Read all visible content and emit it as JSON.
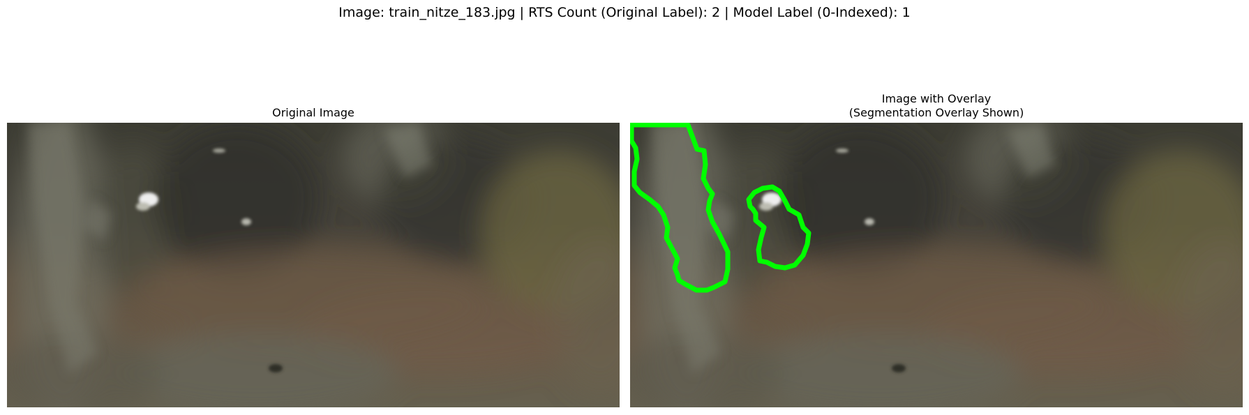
{
  "suptitle": "Image: train_nitze_183.jpg | RTS Count (Original Label): 2 | Model Label (0-Indexed): 1",
  "panels": {
    "left": {
      "title": "Original Image"
    },
    "right": {
      "title_line1": "Image with Overlay",
      "title_line2": "(Segmentation Overlay Shown)"
    }
  },
  "colors": {
    "overlay_outline": "#00ff00",
    "terrain_dark": "#3e3d33",
    "terrain_brown": "#6a5a48",
    "terrain_grey": "#6b6a5d"
  }
}
